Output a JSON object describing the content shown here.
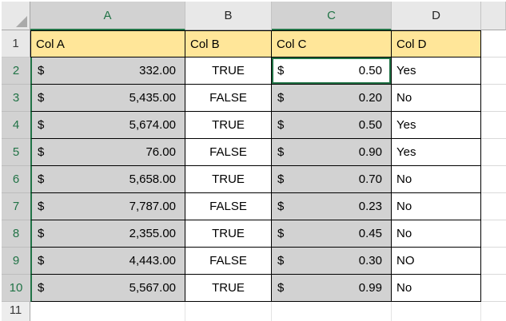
{
  "colors": {
    "accent_green": "#217346",
    "selection_fill": "#D2D2D2",
    "header_row_fill": "#FFE699",
    "header_band_fill": "#E8E8E8"
  },
  "column_headers": [
    {
      "label": "A"
    },
    {
      "label": "B"
    },
    {
      "label": "C"
    },
    {
      "label": "D"
    },
    {
      "label": ""
    }
  ],
  "row_headers": [
    "1",
    "2",
    "3",
    "4",
    "5",
    "6",
    "7",
    "8",
    "9",
    "10",
    "11"
  ],
  "header_cells": {
    "a": "Col A",
    "b": "Col B",
    "c": "Col C",
    "d": "Col D"
  },
  "active_cell": {
    "value": "0.50",
    "currency": "$"
  },
  "rows": [
    {
      "a_sym": "$",
      "a": "332.00",
      "b": "TRUE",
      "c_sym": "$",
      "c": "0.50",
      "d": "Yes"
    },
    {
      "a_sym": "$",
      "a": "5,435.00",
      "b": "FALSE",
      "c_sym": "$",
      "c": "0.20",
      "d": "No"
    },
    {
      "a_sym": "$",
      "a": "5,674.00",
      "b": "TRUE",
      "c_sym": "$",
      "c": "0.50",
      "d": "Yes"
    },
    {
      "a_sym": "$",
      "a": "76.00",
      "b": "FALSE",
      "c_sym": "$",
      "c": "0.90",
      "d": "Yes"
    },
    {
      "a_sym": "$",
      "a": "5,658.00",
      "b": "TRUE",
      "c_sym": "$",
      "c": "0.70",
      "d": "No"
    },
    {
      "a_sym": "$",
      "a": "7,787.00",
      "b": "FALSE",
      "c_sym": "$",
      "c": "0.23",
      "d": "No"
    },
    {
      "a_sym": "$",
      "a": "2,355.00",
      "b": "TRUE",
      "c_sym": "$",
      "c": "0.45",
      "d": "No"
    },
    {
      "a_sym": "$",
      "a": "4,443.00",
      "b": "FALSE",
      "c_sym": "$",
      "c": "0.30",
      "d": "NO"
    },
    {
      "a_sym": "$",
      "a": "5,567.00",
      "b": "TRUE",
      "c_sym": "$",
      "c": "0.99",
      "d": "No"
    }
  ]
}
